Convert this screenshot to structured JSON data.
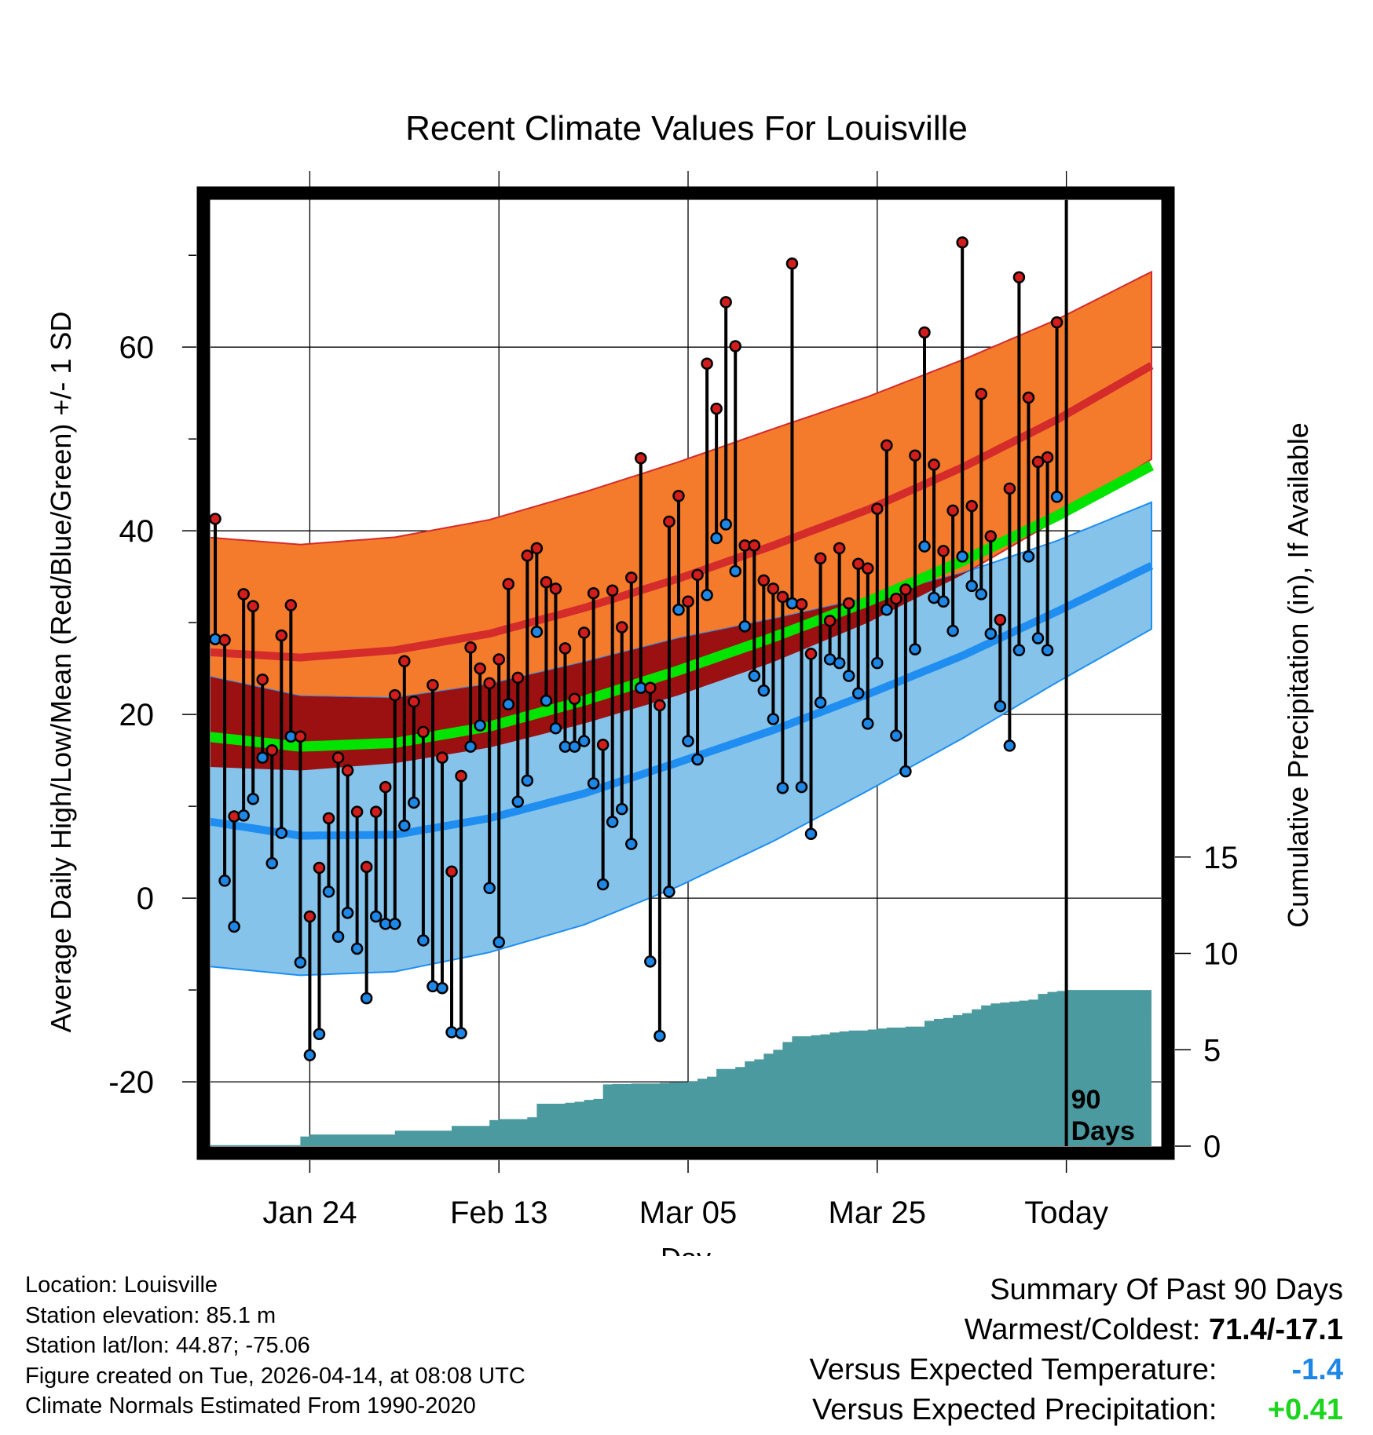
{
  "chart_data": {
    "type": "line",
    "title": "Recent Climate Values For Louisville",
    "xlabel": "Day",
    "ylabel_left": "Average Daily High/Low/Mean (Red/Blue/Green) +/- 1 SD",
    "ylabel_right": "Cumulative Precipitation (in), If Available",
    "x_tick_labels": [
      "Jan 24",
      "Feb 13",
      "Mar 05",
      "Mar 25",
      "Today"
    ],
    "x_tick_days": [
      11,
      31,
      51,
      71,
      91
    ],
    "y_ticks": [
      -20,
      0,
      20,
      40,
      60
    ],
    "ylim": [
      -27,
      76
    ],
    "xlim": [
      0.5,
      101
    ],
    "precip_ticks": [
      0,
      5,
      10,
      15
    ],
    "today_day": 91,
    "today_label": [
      "90",
      "Days"
    ],
    "normals": {
      "days": [
        0,
        10,
        20,
        30,
        40,
        50,
        60,
        70,
        80,
        90,
        100
      ],
      "high_mean": [
        26.8,
        26.2,
        27.0,
        28.8,
        31.6,
        34.8,
        38.4,
        42.3,
        46.9,
        52.1,
        58.0
      ],
      "high_sd": [
        12.5,
        12.3,
        12.3,
        12.4,
        12.6,
        12.7,
        12.7,
        12.3,
        11.7,
        10.9,
        10.2
      ],
      "low_mean": [
        8.4,
        6.8,
        6.9,
        8.7,
        11.4,
        14.8,
        18.3,
        22.2,
        26.4,
        31.2,
        36.2
      ],
      "low_sd": [
        15.8,
        15.2,
        14.9,
        14.6,
        14.3,
        13.5,
        12.1,
        10.5,
        9.0,
        7.7,
        6.9
      ],
      "mean_mean": [
        17.6,
        16.5,
        16.9,
        18.7,
        21.5,
        24.8,
        28.4,
        32.3,
        36.7,
        41.6,
        47.1
      ]
    },
    "daily": {
      "days": [
        1,
        2,
        3,
        4,
        5,
        6,
        7,
        8,
        9,
        10,
        11,
        12,
        13,
        14,
        15,
        16,
        17,
        18,
        19,
        20,
        21,
        22,
        23,
        24,
        25,
        26,
        27,
        28,
        29,
        30,
        31,
        32,
        33,
        34,
        35,
        36,
        37,
        38,
        39,
        40,
        41,
        42,
        43,
        44,
        45,
        46,
        47,
        48,
        49,
        50,
        51,
        52,
        53,
        54,
        55,
        56,
        57,
        58,
        59,
        60,
        61,
        62,
        63,
        64,
        65,
        66,
        67,
        68,
        69,
        70,
        71,
        72,
        73,
        74,
        75,
        76,
        77,
        78,
        79,
        80,
        81,
        82,
        83,
        84,
        85,
        86,
        87,
        88,
        89,
        90
      ],
      "high": [
        41.3,
        28.1,
        8.9,
        33.1,
        31.8,
        23.8,
        16.1,
        28.6,
        31.9,
        17.6,
        -2.0,
        3.3,
        8.7,
        15.3,
        13.9,
        9.4,
        3.4,
        9.4,
        12.1,
        22.1,
        25.8,
        21.4,
        18.1,
        23.2,
        15.3,
        2.9,
        13.3,
        27.3,
        25.0,
        23.4,
        26.0,
        34.2,
        24.0,
        37.3,
        38.1,
        34.4,
        33.7,
        27.2,
        21.7,
        28.9,
        33.2,
        16.7,
        33.5,
        29.5,
        34.9,
        47.9,
        22.9,
        21.0,
        41.0,
        43.8,
        32.3,
        35.2,
        58.2,
        53.3,
        64.9,
        60.1,
        38.4,
        38.4,
        34.6,
        33.7,
        32.8,
        69.1,
        32.0,
        26.6,
        37.0,
        30.2,
        38.1,
        32.1,
        36.4,
        35.9,
        42.4,
        49.3,
        32.6,
        33.6,
        48.2,
        61.6,
        47.2,
        37.8,
        42.2,
        71.4,
        42.7,
        54.9,
        39.4,
        30.3,
        44.6,
        67.6,
        54.5,
        47.5,
        48.0,
        62.7
      ],
      "low": [
        28.2,
        1.9,
        -3.1,
        9.0,
        10.8,
        15.3,
        3.8,
        7.1,
        17.6,
        -7.0,
        -17.1,
        -14.8,
        0.7,
        -4.2,
        -1.6,
        -5.5,
        -10.9,
        -2.0,
        -2.8,
        -2.8,
        7.9,
        10.4,
        -4.6,
        -9.6,
        -9.8,
        -14.6,
        -14.7,
        16.5,
        18.8,
        1.1,
        -4.8,
        21.1,
        10.5,
        12.8,
        29.0,
        21.5,
        18.5,
        16.5,
        16.5,
        17.1,
        12.5,
        1.5,
        8.3,
        9.7,
        5.9,
        22.9,
        -6.9,
        -15.0,
        0.7,
        31.4,
        17.1,
        15.1,
        33.0,
        39.2,
        40.7,
        35.6,
        29.6,
        24.2,
        22.6,
        19.5,
        12.0,
        32.1,
        12.1,
        7.0,
        21.3,
        26.0,
        25.6,
        24.2,
        22.3,
        19.0,
        25.6,
        31.4,
        17.7,
        13.8,
        27.1,
        38.3,
        32.7,
        32.3,
        29.1,
        37.2,
        34.0,
        33.1,
        28.8,
        20.9,
        16.6,
        27.0,
        37.2,
        28.3,
        27.0,
        43.7
      ]
    },
    "precip": {
      "days": [
        0,
        10,
        11,
        20,
        26,
        30,
        31,
        34,
        35,
        37,
        38,
        39,
        40,
        41,
        42,
        43,
        45,
        47,
        48,
        49,
        50,
        51,
        52,
        53,
        54,
        55,
        56,
        57,
        58,
        59,
        60,
        61,
        62,
        63,
        64,
        65,
        66,
        67,
        68,
        69,
        70,
        71,
        72,
        73,
        74,
        75,
        76,
        77,
        78,
        79,
        80,
        81,
        82,
        83,
        84,
        85,
        86,
        87,
        88,
        89,
        90,
        91,
        100
      ],
      "values": [
        0.05,
        0.5,
        0.6,
        0.8,
        1.05,
        1.35,
        1.4,
        1.5,
        2.2,
        2.2,
        2.25,
        2.3,
        2.4,
        2.45,
        3.2,
        3.22,
        3.25,
        3.25,
        3.28,
        3.3,
        3.32,
        3.35,
        3.5,
        3.6,
        4.0,
        4.0,
        4.1,
        4.4,
        4.5,
        4.8,
        5.0,
        5.4,
        5.7,
        5.7,
        5.75,
        5.8,
        5.9,
        5.95,
        6.0,
        6.0,
        6.05,
        6.1,
        6.15,
        6.15,
        6.2,
        6.2,
        6.5,
        6.6,
        6.65,
        6.8,
        6.9,
        7.1,
        7.3,
        7.4,
        7.45,
        7.5,
        7.55,
        7.6,
        7.9,
        8.0,
        8.05,
        8.1,
        8.1
      ],
      "final_in": 8.1
    },
    "colors": {
      "high_band": "#f47a2c",
      "high_line": "#d42b2b",
      "overlap_band": "#9b1010",
      "low_band": "#85c3ea",
      "low_line": "#1f8ef0",
      "mean_line": "#00e400",
      "precip_fill": "#4a9aa0",
      "dot_high": "#d21d1d",
      "dot_low": "#1e86e4",
      "anomaly_temp": "#1e86e4",
      "anomaly_precip": "#1ed41e"
    }
  },
  "info": {
    "location": "Location: Louisville",
    "elevation": "Station elevation: 85.1 m",
    "latlon": "Station lat/lon: 44.87; -75.06",
    "created": "Figure created on Tue, 2026-04-14, at 08:08 UTC",
    "normals": "Climate Normals Estimated From 1990-2020"
  },
  "summary": {
    "heading": "Summary Of Past 90 Days",
    "warm_cold_label": "Warmest/Coldest:",
    "warm_cold_value": "71.4/-17.1",
    "temp_label": "Versus Expected Temperature:",
    "temp_value": "-1.4",
    "precip_label": "Versus Expected Precipitation:",
    "precip_value": "+0.41"
  }
}
